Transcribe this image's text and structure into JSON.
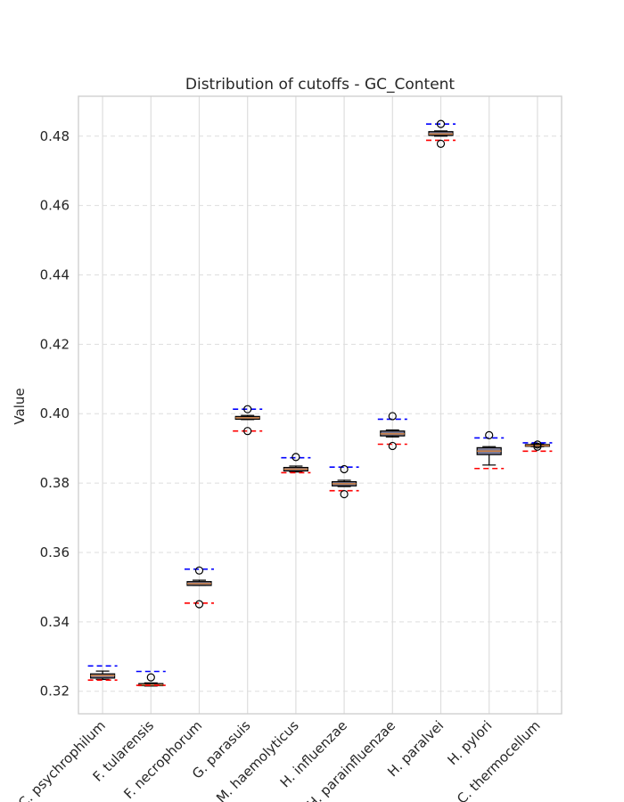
{
  "chart_data": {
    "type": "box",
    "title": "Distribution of cutoffs - GC_Content",
    "xlabel": "",
    "ylabel": "Value",
    "ylim": [
      0.3135,
      0.4915
    ],
    "yticks": [
      "0.32",
      "0.34",
      "0.36",
      "0.38",
      "0.40",
      "0.42",
      "0.44",
      "0.46",
      "0.48"
    ],
    "grid": true,
    "categories": [
      "C. psychrophilum",
      "F. tularensis",
      "F. necrophorum",
      "G. parasuis",
      "M. haemolyticus",
      "H. influenzae",
      "H. parainfluenzae",
      "H. paralvei",
      "H. pylori",
      "C. thermocellum"
    ],
    "boxes": [
      {
        "whislo": 0.3234,
        "q1": 0.3238,
        "med": 0.3245,
        "q3": 0.325,
        "whishi": 0.3258,
        "fliers": [],
        "upper_cutoff": 0.3273,
        "lower_cutoff": 0.3232
      },
      {
        "whislo": 0.3215,
        "q1": 0.3216,
        "med": 0.3218,
        "q3": 0.3222,
        "whishi": 0.3224,
        "fliers": [
          0.324
        ],
        "upper_cutoff": 0.3257,
        "lower_cutoff": 0.3217
      },
      {
        "whislo": 0.3505,
        "q1": 0.3505,
        "med": 0.351,
        "q3": 0.3516,
        "whishi": 0.352,
        "fliers": [
          0.3548,
          0.3451
        ],
        "upper_cutoff": 0.3552,
        "lower_cutoff": 0.3454
      },
      {
        "whislo": 0.3983,
        "q1": 0.3984,
        "med": 0.3988,
        "q3": 0.3992,
        "whishi": 0.3995,
        "fliers": [
          0.4013,
          0.395
        ],
        "upper_cutoff": 0.4013,
        "lower_cutoff": 0.395
      },
      {
        "whislo": 0.3832,
        "q1": 0.3835,
        "med": 0.384,
        "q3": 0.3845,
        "whishi": 0.3849,
        "fliers": [
          0.3875
        ],
        "upper_cutoff": 0.3873,
        "lower_cutoff": 0.383
      },
      {
        "whislo": 0.379,
        "q1": 0.3792,
        "med": 0.3798,
        "q3": 0.3804,
        "whishi": 0.3808,
        "fliers": [
          0.384,
          0.3768
        ],
        "upper_cutoff": 0.3846,
        "lower_cutoff": 0.3778
      },
      {
        "whislo": 0.3933,
        "q1": 0.3936,
        "med": 0.3942,
        "q3": 0.395,
        "whishi": 0.3953,
        "fliers": [
          0.3993,
          0.3907
        ],
        "upper_cutoff": 0.3984,
        "lower_cutoff": 0.3912
      },
      {
        "whislo": 0.48,
        "q1": 0.4802,
        "med": 0.4806,
        "q3": 0.4813,
        "whishi": 0.4815,
        "fliers": [
          0.4835,
          0.4778
        ],
        "upper_cutoff": 0.4835,
        "lower_cutoff": 0.4788
      },
      {
        "whislo": 0.3852,
        "q1": 0.3882,
        "med": 0.3892,
        "q3": 0.3902,
        "whishi": 0.3905,
        "fliers": [
          0.3938
        ],
        "upper_cutoff": 0.393,
        "lower_cutoff": 0.3842
      },
      {
        "whislo": 0.3905,
        "q1": 0.3906,
        "med": 0.3908,
        "q3": 0.3911,
        "whishi": 0.3913,
        "fliers": [
          0.3911,
          0.3905
        ],
        "upper_cutoff": 0.3916,
        "lower_cutoff": 0.3892
      }
    ],
    "colors": {
      "box_fill": "#7a7a96",
      "box_edge": "#000000",
      "median": "#d08040",
      "upper_cutoff": "#0000ff",
      "lower_cutoff": "#ff0000",
      "grid": "#dedede",
      "axes_edge": "#cccccc",
      "text": "#262626"
    }
  }
}
